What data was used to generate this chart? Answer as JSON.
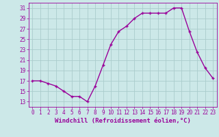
{
  "x": [
    0,
    1,
    2,
    3,
    4,
    5,
    6,
    7,
    8,
    9,
    10,
    11,
    12,
    13,
    14,
    15,
    16,
    17,
    18,
    19,
    20,
    21,
    22,
    23
  ],
  "y": [
    17,
    17,
    16.5,
    16,
    15,
    14,
    14,
    13,
    16,
    20,
    24,
    26.5,
    27.5,
    29,
    30,
    30,
    30,
    30,
    31,
    31,
    26.5,
    22.5,
    19.5,
    17.5
  ],
  "line_color": "#990099",
  "marker": "+",
  "marker_size": 3,
  "background_color": "#cce8e8",
  "grid_color": "#aacccc",
  "xlabel": "Windchill (Refroidissement éolien,°C)",
  "xlabel_color": "#990099",
  "tick_color": "#990099",
  "ylim": [
    12,
    32
  ],
  "yticks": [
    13,
    15,
    17,
    19,
    21,
    23,
    25,
    27,
    29,
    31
  ],
  "xticks": [
    0,
    1,
    2,
    3,
    4,
    5,
    6,
    7,
    8,
    9,
    10,
    11,
    12,
    13,
    14,
    15,
    16,
    17,
    18,
    19,
    20,
    21,
    22,
    23
  ],
  "xlim": [
    -0.5,
    23.5
  ],
  "line_width": 1.0,
  "font_size": 5.5,
  "xlabel_fontsize": 6.5
}
